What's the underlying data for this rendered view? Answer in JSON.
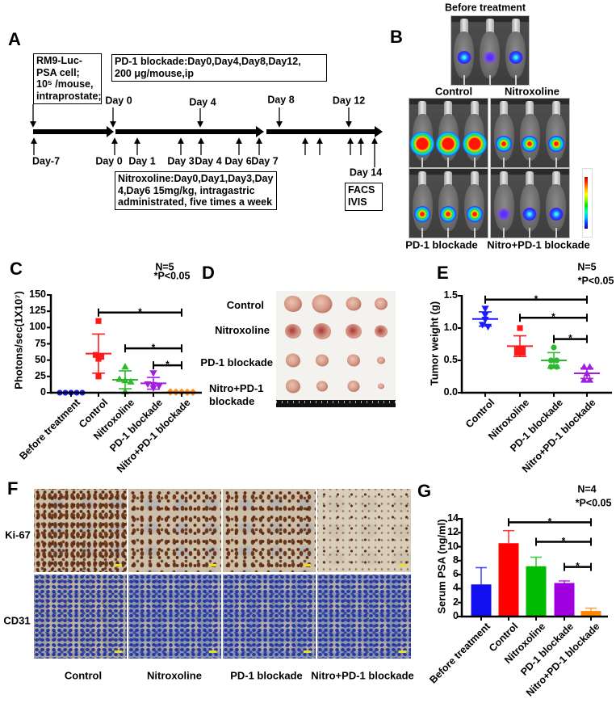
{
  "panel_labels": {
    "A": "A",
    "B": "B",
    "C": "C",
    "D": "D",
    "E": "E",
    "F": "F",
    "G": "G"
  },
  "timeline": {
    "cell_box": [
      "RM9-Luc-",
      "PSA cell;",
      "10⁵ /mouse,",
      "intraprostate;"
    ],
    "pd1_box": [
      "PD-1 blockade:Day0,Day4,Day8,Day12,",
      "200 μg/mouse,ip"
    ],
    "nitro_box": [
      "Nitroxoline:Day0,Day1,Day3,Day",
      "4,Day6 15mg/kg, intragastric",
      "administrated, five times a week"
    ],
    "endpoint_box": [
      "FACS",
      "IVIS"
    ],
    "top_days": [
      "Day 0",
      "Day 4",
      "Day 8",
      "Day 12"
    ],
    "bottom_days": [
      "Day-7",
      "Day 0",
      "Day 1",
      "Day 3",
      "Day 4",
      "Day 6",
      "Day 7",
      "Day 14"
    ]
  },
  "ivis": {
    "before": {
      "title": "Before treatment",
      "mice": [
        "low",
        "very-low",
        "low"
      ]
    },
    "groups": [
      {
        "label": "Control",
        "mice": [
          "high",
          "high",
          "high"
        ]
      },
      {
        "label": "Nitroxoline",
        "mice": [
          "medium",
          "medium",
          "medium"
        ]
      },
      {
        "label": "PD-1 blockade",
        "mice": [
          "medium",
          "medium",
          "medium"
        ]
      },
      {
        "label": "Nitro+PD-1 blockade",
        "mice": [
          "very-low",
          "low",
          "low"
        ]
      }
    ]
  },
  "tumor_photo": {
    "row_labels": [
      "Control",
      "Nitroxoline",
      "PD-1 blockade",
      "Nitro+PD-1\nblockade"
    ],
    "tumor_sizes": [
      [
        22,
        25,
        19,
        16
      ],
      [
        20,
        22,
        20,
        16
      ],
      [
        18,
        16,
        16,
        10
      ],
      [
        18,
        14,
        15,
        8
      ]
    ]
  },
  "ihc": {
    "row_labels": [
      "Ki-67",
      "CD31"
    ],
    "col_labels": [
      "Control",
      "Nitroxoline",
      "PD-1 blockade",
      "Nitro+PD-1 blockade"
    ]
  },
  "chart_data": [
    {
      "panel": "C",
      "type": "scatter",
      "title": "",
      "xlabel": "",
      "ylabel": "Photons/sec(1X10⁷)",
      "ylim": [
        0,
        150
      ],
      "yticks": [
        0,
        25,
        50,
        75,
        100,
        125,
        150
      ],
      "ytick_labels": [
        "0",
        "25",
        "50",
        "75",
        "100",
        "125",
        "150"
      ],
      "grid": false,
      "categories": [
        "Before treatment",
        "Control",
        "Nitroxoline",
        "PD-1 blockade",
        "Nitro+PD-1 blockade"
      ],
      "series": [
        {
          "name": "Before treatment",
          "values": [
            0,
            0,
            0,
            0,
            0
          ],
          "mean": 0,
          "sd": 0,
          "color": "#1a1aff",
          "marker": "circle"
        },
        {
          "name": "Control",
          "values": [
            110,
            58,
            55,
            52,
            25
          ],
          "mean": 60,
          "sd": 30,
          "color": "#ff1a1a",
          "marker": "square"
        },
        {
          "name": "Nitroxoline",
          "values": [
            40,
            21,
            19,
            17,
            2
          ],
          "mean": 19.8,
          "sd": 13.7,
          "color": "#2db82d",
          "marker": "triangle-up"
        },
        {
          "name": "PD-1 blockade",
          "values": [
            30,
            13,
            12,
            10,
            7
          ],
          "mean": 14.4,
          "sd": 9,
          "color": "#a21fe0",
          "marker": "triangle-down"
        },
        {
          "name": "Nitro+PD-1 blockade",
          "values": [
            1.2,
            1,
            0.9,
            0.8,
            0.6
          ],
          "mean": 0.9,
          "sd": 0.2,
          "color": "#ff8c1a",
          "marker": "diamond"
        }
      ],
      "significance": [
        {
          "from": "Control",
          "to": "Nitro+PD-1 blockade",
          "y": 123,
          "label": "*"
        },
        {
          "from": "Nitroxoline",
          "to": "Nitro+PD-1 blockade",
          "y": 68,
          "label": "*"
        },
        {
          "from": "PD-1 blockade",
          "to": "Nitro+PD-1 blockade",
          "y": 42,
          "label": "*"
        }
      ],
      "annotations": {
        "n": "N=5",
        "p": "*P<0.05"
      }
    },
    {
      "panel": "E",
      "type": "scatter",
      "title": "",
      "xlabel": "",
      "ylabel": "Tumor weight (g)",
      "ylim": [
        0,
        1.5
      ],
      "yticks": [
        0,
        0.5,
        1,
        1.5
      ],
      "ytick_labels": [
        "0.0",
        "0.5",
        "1.0",
        "1.5"
      ],
      "grid": false,
      "categories": [
        "Control",
        "Nitroxoline",
        "PD-1 blockade",
        "Nitro+PD-1 blockade"
      ],
      "series": [
        {
          "name": "Control",
          "values": [
            1.3,
            1.2,
            1.13,
            1.05,
            1.02
          ],
          "mean": 1.14,
          "sd": 0.11,
          "color": "#1a1aff",
          "marker": "triangle-down"
        },
        {
          "name": "Nitroxoline",
          "values": [
            1.0,
            0.68,
            0.68,
            0.62,
            0.62
          ],
          "mean": 0.72,
          "sd": 0.16,
          "color": "#ff1a1a",
          "marker": "square"
        },
        {
          "name": "PD-1 blockade",
          "values": [
            0.7,
            0.5,
            0.5,
            0.4,
            0.4
          ],
          "mean": 0.5,
          "sd": 0.12,
          "color": "#2db82d",
          "marker": "circle"
        },
        {
          "name": "Nitro+PD-1 blockade",
          "values": [
            0.4,
            0.4,
            0.3,
            0.2,
            0.2
          ],
          "mean": 0.3,
          "sd": 0.08,
          "color": "#a21fe0",
          "marker": "triangle-up"
        }
      ],
      "significance": [
        {
          "from": "Control",
          "to": "Nitro+PD-1 blockade",
          "y": 1.44,
          "label": "*"
        },
        {
          "from": "Nitroxoline",
          "to": "Nitro+PD-1 blockade",
          "y": 1.16,
          "label": "*"
        },
        {
          "from": "PD-1 blockade",
          "to": "Nitro+PD-1 blockade",
          "y": 0.83,
          "label": "*"
        }
      ],
      "annotations": {
        "n": "N=5",
        "p": "*P<0.05"
      }
    },
    {
      "panel": "G",
      "type": "bar",
      "title": "",
      "xlabel": "",
      "ylabel": "Serum PSA (ng/ml)",
      "ylim": [
        0,
        14
      ],
      "yticks": [
        0,
        2,
        4,
        6,
        8,
        10,
        12,
        14
      ],
      "ytick_labels": [
        "0",
        "2",
        "4",
        "6",
        "8",
        "10",
        "12",
        "14"
      ],
      "grid": false,
      "categories": [
        "Before treatment",
        "Control",
        "Nitroxoline",
        "PD-1 blockade",
        "Nitro+PD-1 blockade"
      ],
      "values": [
        4.6,
        10.5,
        7.2,
        4.8,
        0.8
      ],
      "errors": [
        2.4,
        1.8,
        1.3,
        0.3,
        0.4
      ],
      "colors": [
        "#1010f0",
        "#ff0000",
        "#00bb00",
        "#a000e0",
        "#ff8800"
      ],
      "significance": [
        {
          "from": "Control",
          "to": "Nitro+PD-1 blockade",
          "y": 13.5,
          "label": "*"
        },
        {
          "from": "Nitroxoline",
          "to": "Nitro+PD-1 blockade",
          "y": 10.7,
          "label": "*"
        },
        {
          "from": "PD-1 blockade",
          "to": "Nitro+PD-1 blockade",
          "y": 7.1,
          "label": "*"
        }
      ],
      "annotations": {
        "n": "N=4",
        "p": "*P<0.05"
      }
    }
  ]
}
